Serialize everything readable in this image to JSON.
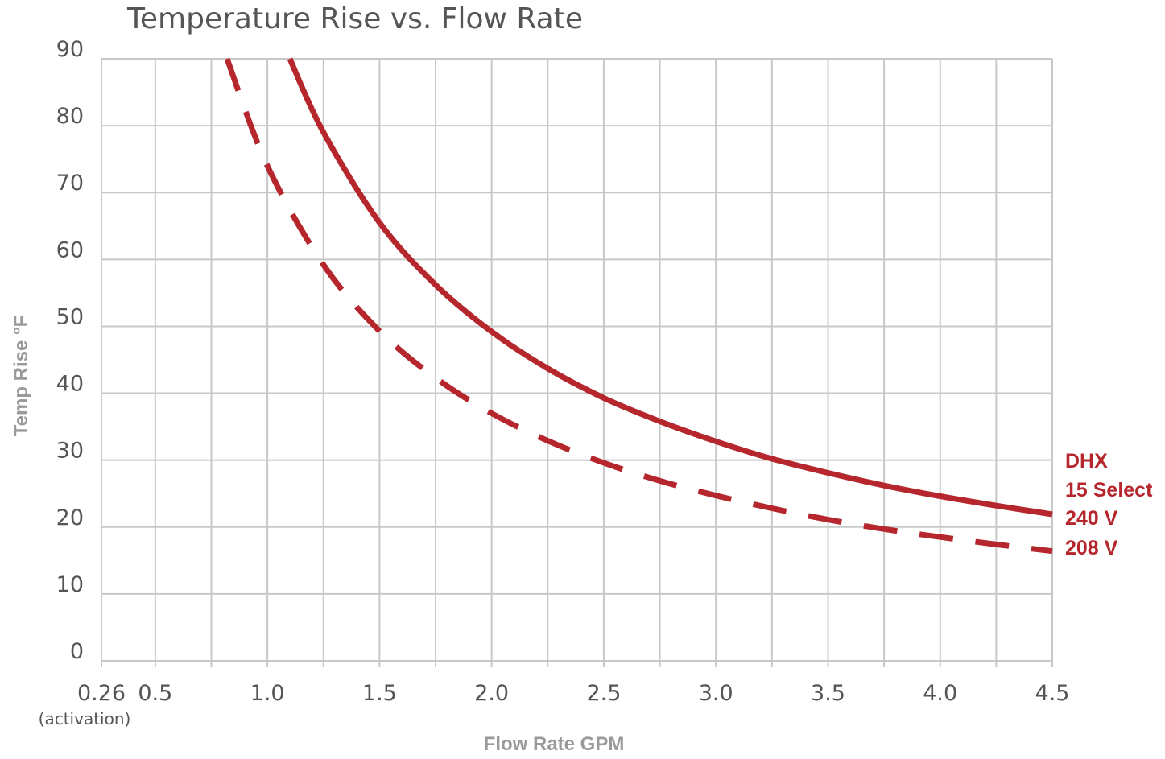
{
  "chart_data": {
    "type": "line",
    "title": "Temperature Rise vs. Flow Rate",
    "xlabel": "Flow Rate GPM",
    "ylabel": "Temp Rise °F",
    "xlim": [
      0.26,
      4.5
    ],
    "ylim": [
      0,
      90
    ],
    "x_ticks": [
      {
        "value": 0.26,
        "label": "0.26",
        "sub": "(activation)"
      },
      {
        "value": 0.5,
        "label": "0.5"
      },
      {
        "value": 1.0,
        "label": "1.0"
      },
      {
        "value": 1.5,
        "label": "1.5"
      },
      {
        "value": 2.0,
        "label": "2.0"
      },
      {
        "value": 2.5,
        "label": "2.5"
      },
      {
        "value": 3.0,
        "label": "3.0"
      },
      {
        "value": 3.5,
        "label": "3.5"
      },
      {
        "value": 4.0,
        "label": "4.0"
      },
      {
        "value": 4.5,
        "label": "4.5"
      }
    ],
    "x_grid": [
      0.5,
      0.75,
      1.0,
      1.25,
      1.5,
      1.75,
      2.0,
      2.25,
      2.5,
      2.75,
      3.0,
      3.25,
      3.5,
      3.75,
      4.0,
      4.25,
      4.5
    ],
    "y_ticks": [
      0,
      10,
      20,
      30,
      40,
      50,
      60,
      70,
      80,
      90
    ],
    "grid": true,
    "legend_title": [
      "DHX",
      "15 Select"
    ],
    "legend_position": "right",
    "series": [
      {
        "name": "240 V",
        "style": "solid",
        "color": "#b5272d",
        "x": [
          1.1,
          1.25,
          1.5,
          1.75,
          2.0,
          2.25,
          2.5,
          2.75,
          3.0,
          3.25,
          3.5,
          3.75,
          4.0,
          4.25,
          4.5
        ],
        "y": [
          90,
          79,
          65.5,
          56.2,
          49.2,
          43.7,
          39.3,
          35.8,
          32.8,
          30.2,
          28.1,
          26.2,
          24.6,
          23.2,
          21.9
        ]
      },
      {
        "name": "208 V",
        "style": "dashed",
        "color": "#b5272d",
        "x": [
          0.82,
          1.0,
          1.25,
          1.5,
          1.75,
          2.0,
          2.25,
          2.5,
          2.75,
          3.0,
          3.25,
          3.5,
          3.75,
          4.0,
          4.25,
          4.5
        ],
        "y": [
          90,
          74,
          59.2,
          49.3,
          42.3,
          37.0,
          32.9,
          29.6,
          26.9,
          24.7,
          22.8,
          21.1,
          19.7,
          18.5,
          17.4,
          16.4
        ]
      }
    ]
  }
}
